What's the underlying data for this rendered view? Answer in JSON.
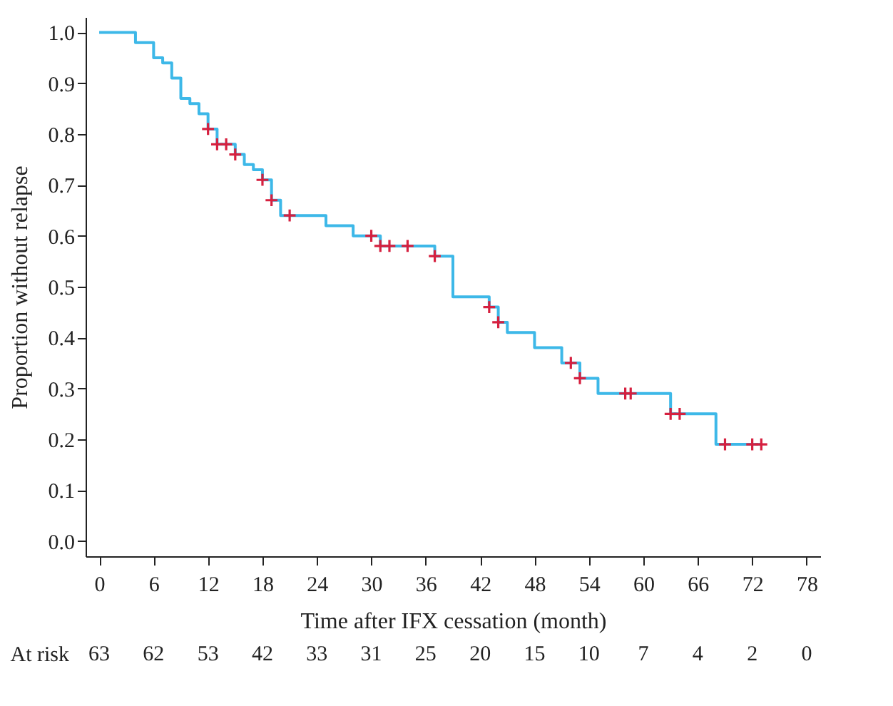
{
  "chart_data": {
    "type": "step",
    "xlabel": "Time after IFX cessation (month)",
    "ylabel": "Proportion without relapse",
    "xlim": [
      -1.5,
      79.5
    ],
    "xticks": [
      0,
      6,
      12,
      18,
      24,
      30,
      36,
      42,
      48,
      54,
      60,
      66,
      72,
      78
    ],
    "ylim": [
      -0.03,
      1.03
    ],
    "yticks": [
      {
        "value": 0,
        "label": "0.0"
      },
      0.1,
      0.2,
      0.3,
      0.4,
      0.5,
      0.6,
      0.7,
      0.8,
      0.9,
      {
        "value": 1,
        "label": "1.0"
      }
    ],
    "grid": false,
    "series": [
      {
        "color": "#3db8e8",
        "x": [
          0,
          4,
          6,
          7,
          8,
          9,
          10,
          11,
          12,
          13,
          15,
          16,
          17,
          18,
          19,
          20,
          25,
          28,
          31,
          37,
          39,
          43,
          44,
          45,
          48,
          51,
          53,
          55,
          63,
          68,
          73
        ],
        "values": [
          1.0,
          0.98,
          0.95,
          0.94,
          0.91,
          0.87,
          0.86,
          0.84,
          0.81,
          0.78,
          0.76,
          0.74,
          0.73,
          0.71,
          0.67,
          0.64,
          0.62,
          0.6,
          0.58,
          0.56,
          0.48,
          0.46,
          0.43,
          0.41,
          0.38,
          0.35,
          0.32,
          0.29,
          0.25,
          0.19,
          0.19
        ]
      },
      {
        "type": "scatter",
        "marker": "cross",
        "color": "#d6203f",
        "x": [
          12,
          13,
          14,
          15,
          18,
          19,
          21,
          30,
          31,
          32,
          34,
          37,
          43,
          44,
          52,
          53,
          58,
          58.6,
          63,
          64,
          69,
          72,
          73
        ],
        "values": [
          0.81,
          0.78,
          0.78,
          0.76,
          0.71,
          0.67,
          0.64,
          0.6,
          0.58,
          0.58,
          0.58,
          0.56,
          0.46,
          0.43,
          0.35,
          0.32,
          0.29,
          0.29,
          0.25,
          0.25,
          0.19,
          0.19,
          0.19
        ]
      }
    ],
    "annotations": [
      "At risk",
      "63",
      "62",
      "53",
      "42",
      "33",
      "31",
      "25",
      "20",
      "15",
      "10",
      "7",
      "4",
      "2",
      "0"
    ]
  }
}
